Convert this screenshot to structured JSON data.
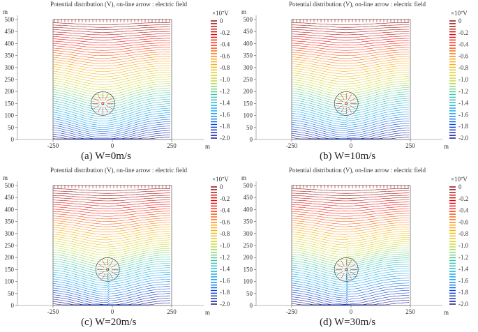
{
  "figure": {
    "panel_title": "Potential distribution (V), on-line arrow : electric field",
    "y_unit": "m",
    "x_unit": "m",
    "colorbar_unit": "×10⁷V"
  },
  "chart_data": [
    {
      "type": "contour",
      "caption": "(a) W=0m/s",
      "wind_speed": 0,
      "xlim": [
        -250,
        250
      ],
      "ylim": [
        0,
        500
      ],
      "x_ticks": [
        "-250",
        "0",
        "250"
      ],
      "y_ticks": [
        "0",
        "50",
        "100",
        "150",
        "200",
        "250",
        "300",
        "350",
        "400",
        "450",
        "500"
      ],
      "colorbar_range": [
        -2.0,
        0
      ],
      "colorbar_ticks": [
        "0",
        "-0.2",
        "-0.4",
        "-0.6",
        "-0.8",
        "-1.0",
        "-1.2",
        "-1.4",
        "-1.6",
        "-1.8",
        "-2.0"
      ],
      "charge_center": [
        -40,
        150
      ]
    },
    {
      "type": "contour",
      "caption": "(b) W=10m/s",
      "wind_speed": 10,
      "xlim": [
        -250,
        250
      ],
      "ylim": [
        0,
        500
      ],
      "x_ticks": [
        "-250",
        "0",
        "250"
      ],
      "y_ticks": [
        "0",
        "50",
        "100",
        "150",
        "200",
        "250",
        "300",
        "350",
        "400",
        "450",
        "500"
      ],
      "colorbar_range": [
        -2.0,
        0
      ],
      "colorbar_ticks": [
        "0",
        "-0.2",
        "-0.4",
        "-0.6",
        "-0.8",
        "-1.0",
        "-1.2",
        "-1.4",
        "-1.6",
        "-1.8",
        "-2.0"
      ],
      "charge_center": [
        -20,
        150
      ]
    },
    {
      "type": "contour",
      "caption": "(c) W=20m/s",
      "wind_speed": 20,
      "xlim": [
        -250,
        250
      ],
      "ylim": [
        0,
        500
      ],
      "x_ticks": [
        "-250",
        "0",
        "250"
      ],
      "y_ticks": [
        "0",
        "50",
        "100",
        "150",
        "200",
        "250",
        "300",
        "350",
        "400",
        "450",
        "500"
      ],
      "colorbar_range": [
        -2.0,
        0
      ],
      "colorbar_ticks": [
        "0",
        "-0.2",
        "-0.4",
        "-0.6",
        "-0.8",
        "-1.0",
        "-1.2",
        "-1.4",
        "-1.6",
        "-1.8",
        "-2.0"
      ],
      "charge_center": [
        -20,
        150
      ]
    },
    {
      "type": "contour",
      "caption": "(d) W=30m/s",
      "wind_speed": 30,
      "xlim": [
        -250,
        250
      ],
      "ylim": [
        0,
        500
      ],
      "x_ticks": [
        "-250",
        "0",
        "250"
      ],
      "y_ticks": [
        "0",
        "50",
        "100",
        "150",
        "200",
        "250",
        "300",
        "350",
        "400",
        "450",
        "500"
      ],
      "colorbar_range": [
        -2.0,
        0
      ],
      "colorbar_ticks": [
        "0",
        "-0.2",
        "-0.4",
        "-0.6",
        "-0.8",
        "-1.0",
        "-1.2",
        "-1.4",
        "-1.6",
        "-1.8",
        "-2.0"
      ],
      "charge_center": [
        -20,
        150
      ]
    }
  ]
}
